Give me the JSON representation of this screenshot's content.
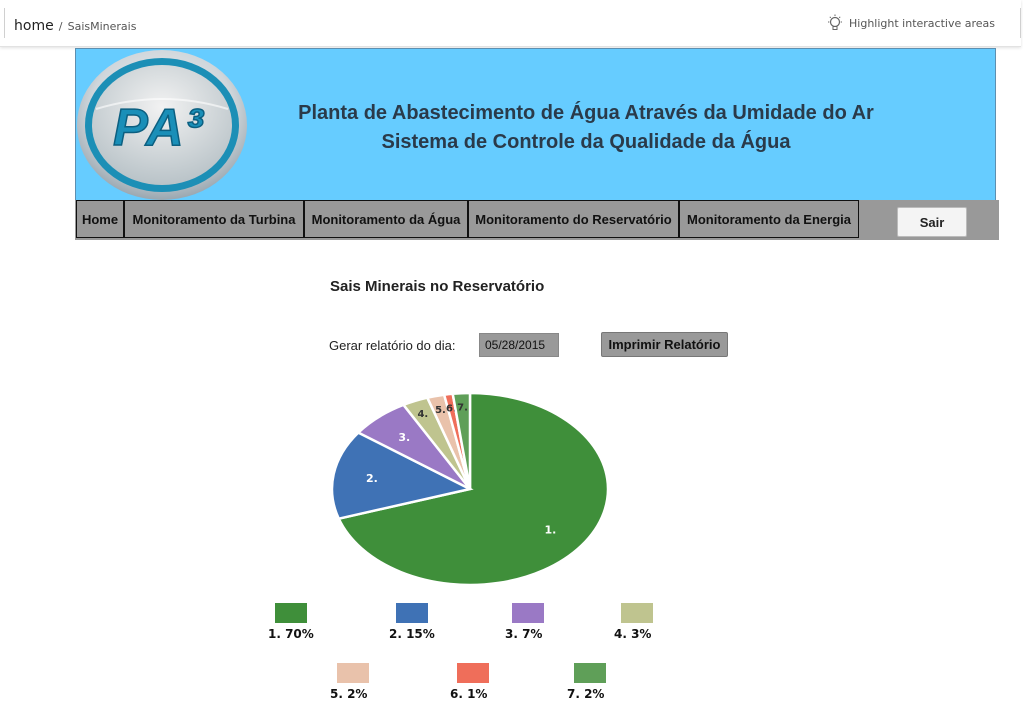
{
  "topbar": {
    "home": "home",
    "separator": "/",
    "page": "SaisMinerais",
    "highlight_label": "Highlight interactive areas",
    "highlight_icon": "lightbulb-icon"
  },
  "header": {
    "logo_text": "PA³",
    "title_line1": "Planta de Abastecimento de Água Através da Umidade do Ar",
    "title_line2": "Sistema de Controle da Qualidade da Água"
  },
  "nav": {
    "items": [
      "Home",
      "Monitoramento da Turbina",
      "Monitoramento da Água",
      "Monitoramento do Reservatório",
      "Monitoramento da Energia"
    ],
    "logout": "Sair"
  },
  "content": {
    "title": "Sais Minerais no Reservatório",
    "report_label": "Gerar relatório do dia:",
    "date_value": "05/28/2015",
    "print_button": "Imprimir Relatório"
  },
  "chart_data": {
    "type": "pie",
    "title": "",
    "slices": [
      {
        "label": "1.",
        "legend": "1. 70%",
        "value": 70,
        "color": "#3f8f3a"
      },
      {
        "label": "2.",
        "legend": "2. 15%",
        "value": 15,
        "color": "#3f72b5"
      },
      {
        "label": "3.",
        "legend": "3. 7%",
        "value": 7,
        "color": "#9a79c5"
      },
      {
        "label": "4.",
        "legend": "4. 3%",
        "value": 3,
        "color": "#bfc48f"
      },
      {
        "label": "5.",
        "legend": "5. 2%",
        "value": 2,
        "color": "#e9c2ab"
      },
      {
        "label": "6.",
        "legend": "6. 1%",
        "value": 1,
        "color": "#ef6e5a"
      },
      {
        "label": "7.",
        "legend": "7. 2%",
        "value": 2,
        "color": "#5f9f58"
      }
    ]
  },
  "colors": {
    "banner": "#66ccff",
    "nav": "#999999"
  }
}
